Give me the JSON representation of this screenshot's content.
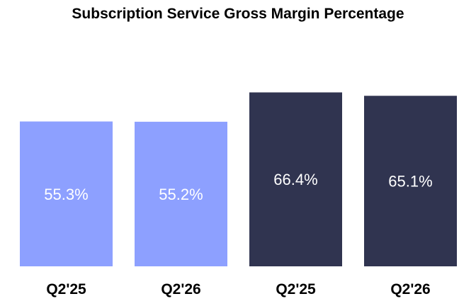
{
  "chart_data": {
    "type": "bar",
    "title": "Subscription Service Gross Margin Percentage",
    "xlabel": "",
    "ylabel": "",
    "categories": [
      "Q2'25",
      "Q2'26",
      "Q2'25",
      "Q2'26"
    ],
    "values": [
      55.3,
      55.2,
      66.4,
      65.1
    ],
    "value_labels": [
      "55.3%",
      "55.2%",
      "66.4%",
      "65.1%"
    ],
    "colors": [
      "#8da0ff",
      "#8da0ff",
      "#303450",
      "#303450"
    ],
    "ylim": [
      0,
      75
    ],
    "grid": false
  }
}
